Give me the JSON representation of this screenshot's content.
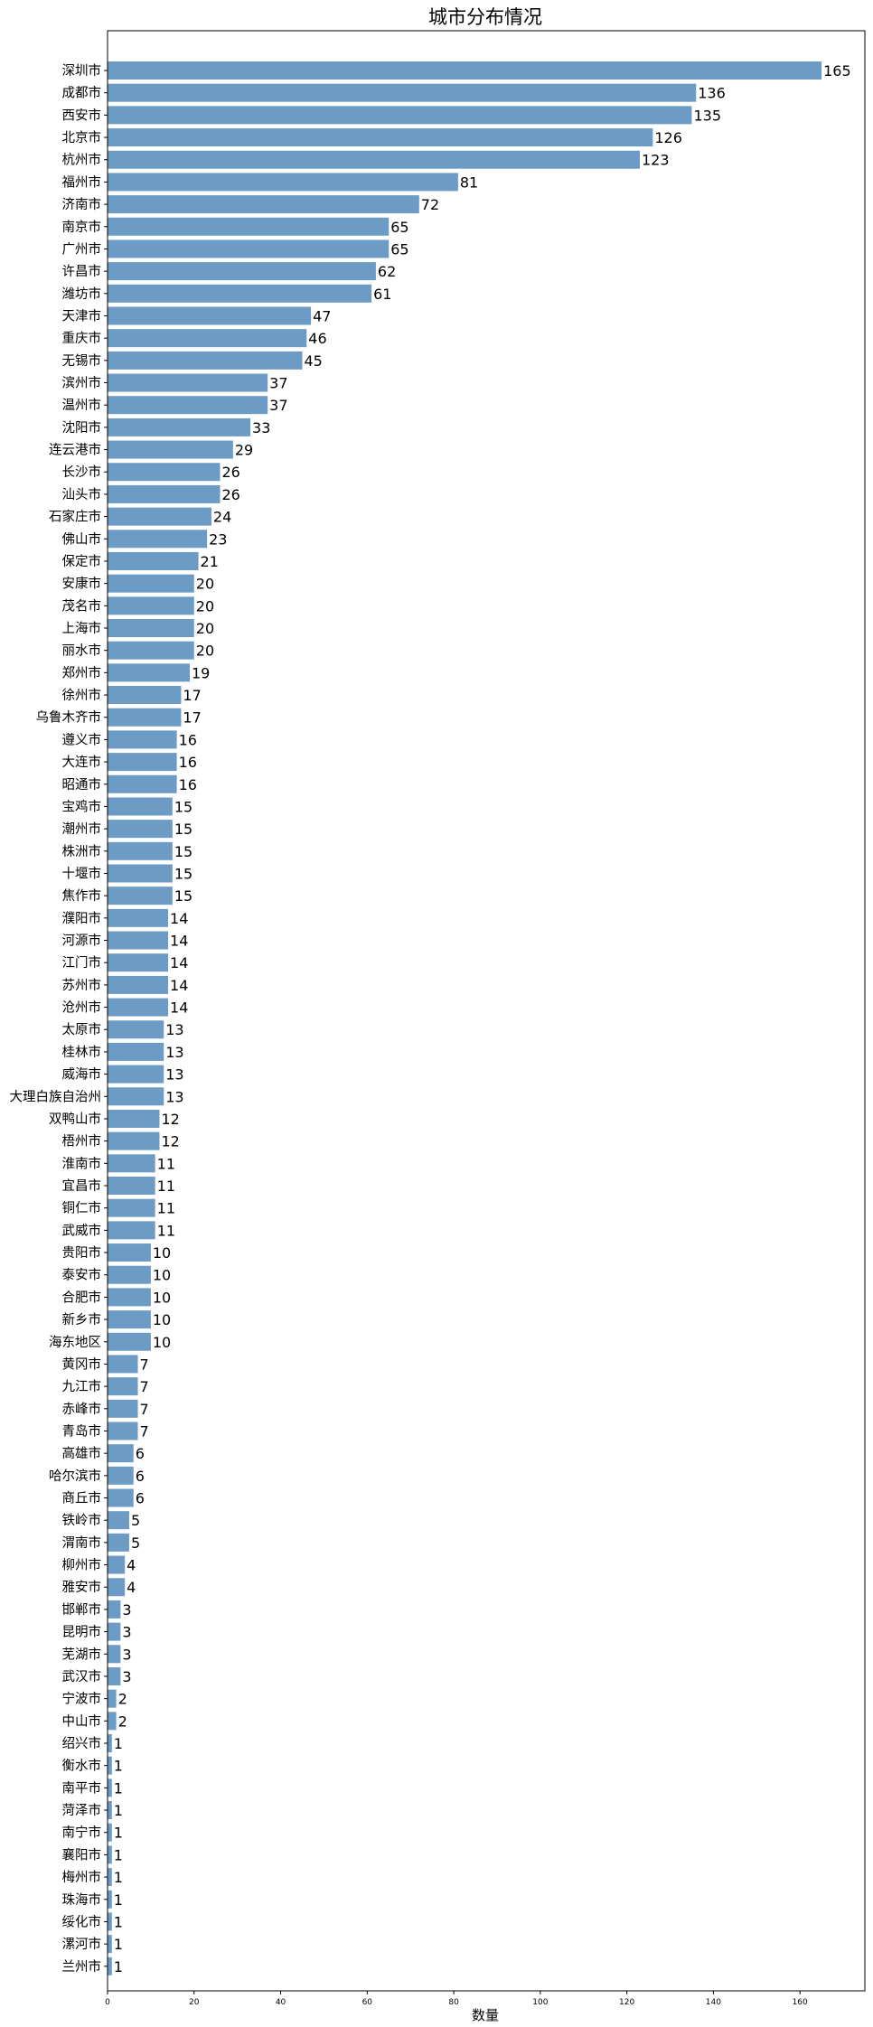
{
  "chart_data": {
    "type": "bar",
    "orientation": "horizontal",
    "title": "城市分布情况",
    "xlabel": "数量",
    "ylabel": "",
    "xlim": [
      0,
      175
    ],
    "xticks": [
      0,
      20,
      40,
      60,
      80,
      100,
      120,
      140,
      160
    ],
    "grid": false,
    "bar_color": "#6c9bc5",
    "categories": [
      "深圳市",
      "成都市",
      "西安市",
      "北京市",
      "杭州市",
      "福州市",
      "济南市",
      "南京市",
      "广州市",
      "许昌市",
      "潍坊市",
      "天津市",
      "重庆市",
      "无锡市",
      "滨州市",
      "温州市",
      "沈阳市",
      "连云港市",
      "长沙市",
      "汕头市",
      "石家庄市",
      "佛山市",
      "保定市",
      "安康市",
      "茂名市",
      "上海市",
      "丽水市",
      "郑州市",
      "徐州市",
      "乌鲁木齐市",
      "遵义市",
      "大连市",
      "昭通市",
      "宝鸡市",
      "潮州市",
      "株洲市",
      "十堰市",
      "焦作市",
      "濮阳市",
      "河源市",
      "江门市",
      "苏州市",
      "沧州市",
      "太原市",
      "桂林市",
      "威海市",
      "大理白族自治州",
      "双鸭山市",
      "梧州市",
      "淮南市",
      "宜昌市",
      "铜仁市",
      "武威市",
      "贵阳市",
      "泰安市",
      "合肥市",
      "新乡市",
      "海东地区",
      "黄冈市",
      "九江市",
      "赤峰市",
      "青岛市",
      "高雄市",
      "哈尔滨市",
      "商丘市",
      "铁岭市",
      "渭南市",
      "柳州市",
      "雅安市",
      "邯郸市",
      "昆明市",
      "芜湖市",
      "武汉市",
      "宁波市",
      "中山市",
      "绍兴市",
      "衡水市",
      "南平市",
      "菏泽市",
      "南宁市",
      "襄阳市",
      "梅州市",
      "珠海市",
      "绥化市",
      "漯河市",
      "兰州市"
    ],
    "values": [
      165,
      136,
      135,
      126,
      123,
      81,
      72,
      65,
      65,
      62,
      61,
      47,
      46,
      45,
      37,
      37,
      33,
      29,
      26,
      26,
      24,
      23,
      21,
      20,
      20,
      20,
      20,
      19,
      17,
      17,
      16,
      16,
      16,
      15,
      15,
      15,
      15,
      15,
      14,
      14,
      14,
      14,
      14,
      13,
      13,
      13,
      13,
      12,
      12,
      11,
      11,
      11,
      11,
      10,
      10,
      10,
      10,
      10,
      7,
      7,
      7,
      7,
      6,
      6,
      6,
      5,
      5,
      4,
      4,
      3,
      3,
      3,
      3,
      2,
      2,
      1,
      1,
      1,
      1,
      1,
      1,
      1,
      1,
      1,
      1,
      1
    ]
  }
}
